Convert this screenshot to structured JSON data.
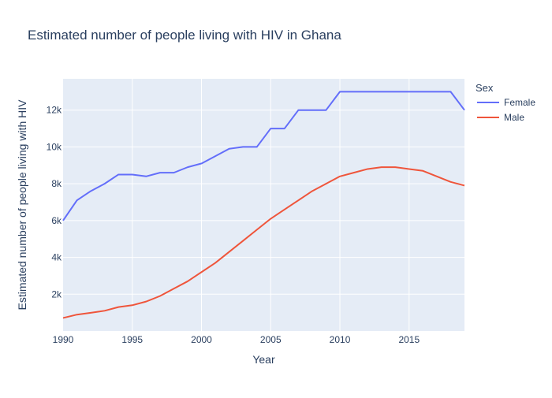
{
  "chart_data": {
    "type": "line",
    "title": "Estimated number of people living with HIV in Ghana",
    "xlabel": "Year",
    "ylabel": "Estimated number of people living with HIV",
    "xlim": [
      1990,
      2019
    ],
    "ylim": [
      0,
      13700
    ],
    "x_ticks": [
      1990,
      1995,
      2000,
      2005,
      2010,
      2015
    ],
    "x_tick_labels": [
      "1990",
      "1995",
      "2000",
      "2005",
      "2010",
      "2015"
    ],
    "y_ticks": [
      2000,
      4000,
      6000,
      8000,
      10000,
      12000
    ],
    "y_tick_labels": [
      "2k",
      "4k",
      "6k",
      "8k",
      "10k",
      "12k"
    ],
    "grid": true,
    "legend_title": "Sex",
    "legend_position": "top-right-outside",
    "x": [
      1990,
      1991,
      1992,
      1993,
      1994,
      1995,
      1996,
      1997,
      1998,
      1999,
      2000,
      2001,
      2002,
      2003,
      2004,
      2005,
      2006,
      2007,
      2008,
      2009,
      2010,
      2011,
      2012,
      2013,
      2014,
      2015,
      2016,
      2017,
      2018,
      2019
    ],
    "series": [
      {
        "name": "Female",
        "color": "#636efa",
        "values": [
          6000,
          7100,
          7600,
          8000,
          8500,
          8500,
          8400,
          8600,
          8600,
          8900,
          9100,
          9500,
          9900,
          10000,
          10000,
          11000,
          11000,
          12000,
          12000,
          12000,
          13000,
          13000,
          13000,
          13000,
          13000,
          13000,
          13000,
          13000,
          13000,
          12000
        ]
      },
      {
        "name": "Male",
        "color": "#ef553b",
        "values": [
          710,
          890,
          990,
          1100,
          1300,
          1400,
          1600,
          1900,
          2300,
          2700,
          3200,
          3700,
          4300,
          4900,
          5500,
          6100,
          6600,
          7100,
          7600,
          8000,
          8400,
          8600,
          8800,
          8900,
          8900,
          8800,
          8700,
          8400,
          8100,
          7900
        ]
      }
    ]
  }
}
